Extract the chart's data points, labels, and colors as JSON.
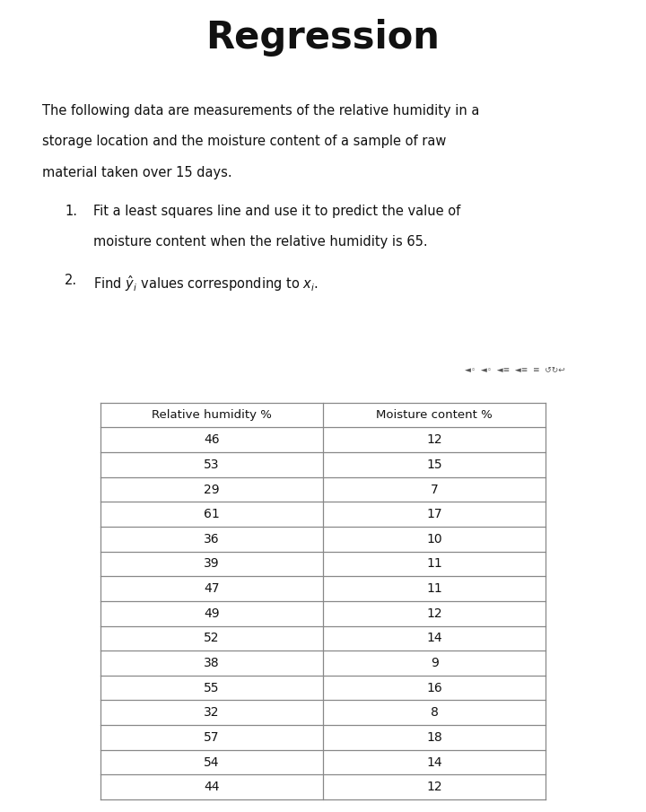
{
  "title": "Regression",
  "paragraph_line1": "The following data are measurements of the relative humidity in a",
  "paragraph_line2": "storage location and the moisture content of a sample of raw",
  "paragraph_line3": "material taken over 15 days.",
  "item1_line1": "Fit a least squares line and use it to predict the value of",
  "item1_line2": "moisture content when the relative humidity is 65.",
  "item2": "Find $\\hat{y}_i$ values corresponding to $x_i$.",
  "col1_header": "Relative humidity %",
  "col2_header": "Moisture content %",
  "col1_data": [
    46,
    53,
    29,
    61,
    36,
    39,
    47,
    49,
    52,
    38,
    55,
    32,
    57,
    54,
    44
  ],
  "col2_data": [
    12,
    15,
    7,
    17,
    10,
    11,
    11,
    12,
    14,
    9,
    16,
    8,
    18,
    14,
    12
  ],
  "bg_top": "#ffffff",
  "bg_bottom": "#c8c8d4",
  "table_line_color": "#888888",
  "text_color": "#111111",
  "nav_color": "#555555"
}
